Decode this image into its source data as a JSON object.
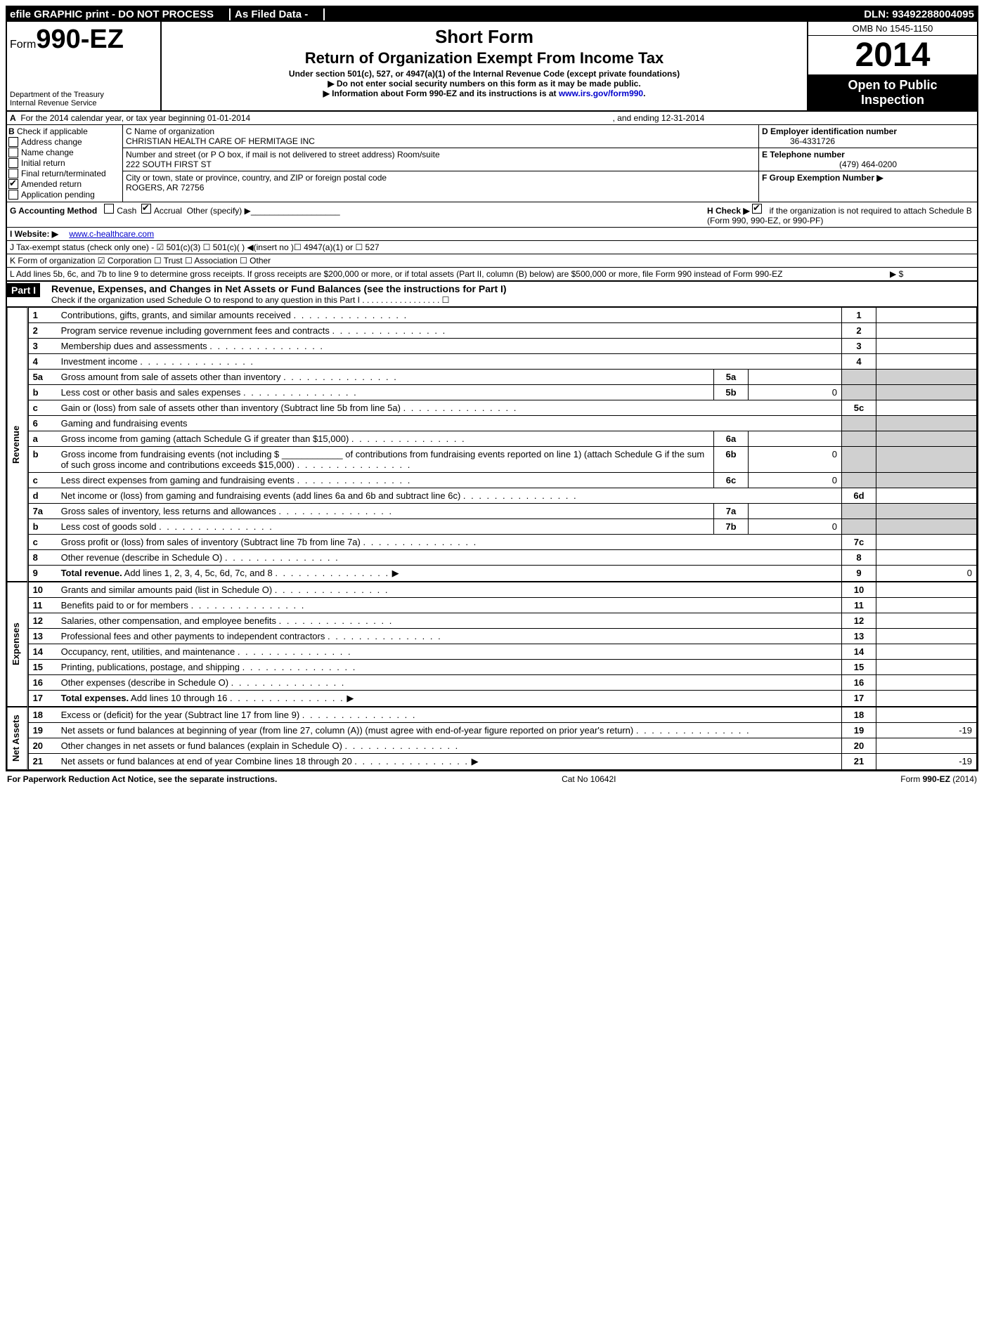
{
  "topbar": {
    "efile": "efile GRAPHIC print - DO NOT PROCESS",
    "asfiled": "As Filed Data -",
    "dln": "DLN: 93492288004095"
  },
  "header": {
    "form_prefix": "Form",
    "form_number": "990-EZ",
    "dept1": "Department of the Treasury",
    "dept2": "Internal Revenue Service",
    "short_form": "Short Form",
    "title": "Return of Organization Exempt From Income Tax",
    "subtitle": "Under section 501(c), 527, or 4947(a)(1) of the Internal Revenue Code (except private foundations)",
    "note1": "▶ Do not enter social security numbers on this form as it may be made public.",
    "note2_pre": "▶ Information about Form 990-EZ and its instructions is at ",
    "note2_link": "www.irs.gov/form990",
    "omb": "OMB No  1545-1150",
    "year": "2014",
    "open1": "Open to Public",
    "open2": "Inspection"
  },
  "rowA": {
    "label_a": "A",
    "text": "For the 2014 calendar year, or tax year beginning 01-01-2014",
    "ending": ", and ending 12-31-2014"
  },
  "checkboxes": {
    "header": "B",
    "label": "Check if applicable",
    "items": [
      {
        "label": "Address change",
        "checked": false
      },
      {
        "label": "Name change",
        "checked": false
      },
      {
        "label": "Initial return",
        "checked": false
      },
      {
        "label": "Final return/terminated",
        "checked": false
      },
      {
        "label": "Amended return",
        "checked": true
      },
      {
        "label": "Application pending",
        "checked": false
      }
    ]
  },
  "colC": {
    "name_label": "C Name of organization",
    "name_value": "CHRISTIAN HEALTH CARE OF HERMITAGE INC",
    "street_label": "Number and street (or P O box, if mail is not delivered to street address) Room/suite",
    "street_value": "222 SOUTH FIRST ST",
    "city_label": "City or town, state or province, country, and ZIP or foreign postal code",
    "city_value": "ROGERS, AR  72756"
  },
  "colD": {
    "d_label": "D Employer identification number",
    "d_value": "36-4331726",
    "e_label": "E Telephone number",
    "e_value": "(479) 464-0200",
    "f_label": "F Group Exemption Number  ▶"
  },
  "rowG": {
    "g": "G Accounting Method",
    "cash": "Cash",
    "accrual": "Accrual",
    "other": "Other (specify) ▶",
    "h": "H   Check ▶",
    "h_tail": "if the organization is not required to attach Schedule B (Form 990, 990-EZ, or 990-PF)"
  },
  "rowI": {
    "label": "I Website: ▶",
    "value": "www.c-healthcare.com"
  },
  "rowJ": "J Tax-exempt status (check only one) - ☑ 501(c)(3)  ☐ 501(c)(  )  ◀(insert no )☐  4947(a)(1) or ☐  527",
  "rowK": "K Form of organization   ☑ Corporation  ☐ Trust  ☐ Association  ☐ Other",
  "rowL": "L Add lines 5b, 6c, and 7b to line 9 to determine gross receipts. If gross receipts are $200,000 or more, or if total assets (Part II, column (B) below) are $500,000 or more, file Form 990 instead of Form 990-EZ",
  "rowL_tail": "▶ $",
  "part1": {
    "label": "Part I",
    "title": "Revenue, Expenses, and Changes in Net Assets or Fund Balances (see the instructions for Part I)",
    "sub": "Check if the organization used Schedule O to respond to any question in this Part I  . . . . . . . . . . . . . . . . . ☐"
  },
  "sections": {
    "revenue": "Revenue",
    "expenses": "Expenses",
    "netassets": "Net Assets"
  },
  "lines": [
    {
      "n": "1",
      "desc": "Contributions, gifts, grants, and similar amounts received",
      "rn": "1",
      "rv": ""
    },
    {
      "n": "2",
      "desc": "Program service revenue including government fees and contracts",
      "rn": "2",
      "rv": ""
    },
    {
      "n": "3",
      "desc": "Membership dues and assessments",
      "rn": "3",
      "rv": ""
    },
    {
      "n": "4",
      "desc": "Investment income",
      "rn": "4",
      "rv": ""
    },
    {
      "n": "5a",
      "desc": "Gross amount from sale of assets other than inventory",
      "mn": "5a",
      "mv": "",
      "shade": true
    },
    {
      "n": "b",
      "desc": "Less  cost or other basis and sales expenses",
      "mn": "5b",
      "mv": "0",
      "shade": true
    },
    {
      "n": "c",
      "desc": "Gain or (loss) from sale of assets other than inventory (Subtract line 5b from line 5a)",
      "rn": "5c",
      "rv": ""
    },
    {
      "n": "6",
      "desc": "Gaming and fundraising events",
      "shade": true,
      "nob": true
    },
    {
      "n": "a",
      "desc": "Gross income from gaming (attach Schedule G if greater than $15,000)",
      "mn": "6a",
      "mv": "",
      "shade": true
    },
    {
      "n": "b",
      "desc": "Gross income from fundraising events (not including $ ____________ of contributions from fundraising events reported on line 1) (attach Schedule G if the sum of such gross income and contributions exceeds $15,000)",
      "mn": "6b",
      "mv": "0",
      "shade": true
    },
    {
      "n": "c",
      "desc": "Less  direct expenses from gaming and fundraising events",
      "mn": "6c",
      "mv": "0",
      "shade": true
    },
    {
      "n": "d",
      "desc": "Net income or (loss) from gaming and fundraising events (add lines 6a and 6b and subtract line 6c)",
      "rn": "6d",
      "rv": ""
    },
    {
      "n": "7a",
      "desc": "Gross sales of inventory, less returns and allowances",
      "mn": "7a",
      "mv": "",
      "shade": true
    },
    {
      "n": "b",
      "desc": "Less  cost of goods sold",
      "mn": "7b",
      "mv": "0",
      "shade": true
    },
    {
      "n": "c",
      "desc": "Gross profit or (loss) from sales of inventory (Subtract line 7b from line 7a)",
      "rn": "7c",
      "rv": ""
    },
    {
      "n": "8",
      "desc": "Other revenue (describe in Schedule O)",
      "rn": "8",
      "rv": ""
    },
    {
      "n": "9",
      "desc": "Total revenue. Add lines 1, 2, 3, 4, 5c, 6d, 7c, and 8",
      "rn": "9",
      "rv": "0",
      "bold": true,
      "arrow": true
    }
  ],
  "exp_lines": [
    {
      "n": "10",
      "desc": "Grants and similar amounts paid (list in Schedule O)",
      "rn": "10",
      "rv": ""
    },
    {
      "n": "11",
      "desc": "Benefits paid to or for members",
      "rn": "11",
      "rv": ""
    },
    {
      "n": "12",
      "desc": "Salaries, other compensation, and employee benefits",
      "rn": "12",
      "rv": ""
    },
    {
      "n": "13",
      "desc": "Professional fees and other payments to independent contractors",
      "rn": "13",
      "rv": ""
    },
    {
      "n": "14",
      "desc": "Occupancy, rent, utilities, and maintenance",
      "rn": "14",
      "rv": ""
    },
    {
      "n": "15",
      "desc": "Printing, publications, postage, and shipping",
      "rn": "15",
      "rv": ""
    },
    {
      "n": "16",
      "desc": "Other expenses (describe in Schedule O)",
      "rn": "16",
      "rv": ""
    },
    {
      "n": "17",
      "desc": "Total expenses. Add lines 10 through 16",
      "rn": "17",
      "rv": "",
      "bold": true,
      "arrow": true
    }
  ],
  "net_lines": [
    {
      "n": "18",
      "desc": "Excess or (deficit) for the year (Subtract line 17 from line 9)",
      "rn": "18",
      "rv": ""
    },
    {
      "n": "19",
      "desc": "Net assets or fund balances at beginning of year (from line 27, column (A)) (must agree with end-of-year figure reported on prior year's return)",
      "rn": "19",
      "rv": "-19"
    },
    {
      "n": "20",
      "desc": "Other changes in net assets or fund balances (explain in Schedule O)",
      "rn": "20",
      "rv": ""
    },
    {
      "n": "21",
      "desc": "Net assets or fund balances at end of year Combine lines 18 through 20",
      "rn": "21",
      "rv": "-19",
      "arrow": true
    }
  ],
  "footer": {
    "left": "For Paperwork Reduction Act Notice, see the separate instructions.",
    "mid": "Cat No 10642I",
    "right": "Form 990-EZ (2014)"
  }
}
